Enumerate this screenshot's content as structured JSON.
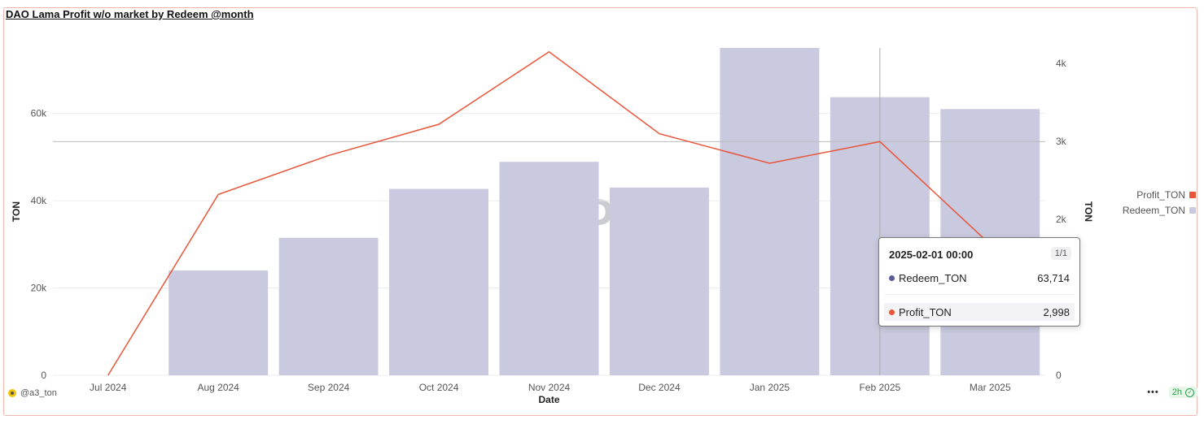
{
  "title": "DAO Lama Profit w/o market by Redeem @month",
  "owner": "@a3_ton",
  "refresh_age": "2h",
  "watermark_text": "Dune",
  "legend": [
    {
      "label": "Profit_TON",
      "color": "#e8563a"
    },
    {
      "label": "Redeem_TON",
      "color": "#c9c9df"
    }
  ],
  "tooltip": {
    "header": "2025-02-01 00:00",
    "page": "1/1",
    "rows": [
      {
        "name": "Redeem_TON",
        "value": "63,714",
        "color": "#5b5b9a"
      },
      {
        "name": "Profit_TON",
        "value": "2,998",
        "color": "#e8563a"
      }
    ]
  },
  "chart_data": {
    "type": "bar",
    "categories": [
      "Jul 2024",
      "Aug 2024",
      "Sep 2024",
      "Oct 2024",
      "Nov 2024",
      "Dec 2024",
      "Jan 2025",
      "Feb 2025",
      "Mar 2025"
    ],
    "xlabel": "Date",
    "ylabel": "TON",
    "y2label": "TON",
    "ylim": [
      0,
      75000
    ],
    "y2lim": [
      0,
      4200
    ],
    "yticks": [
      0,
      20000,
      40000,
      60000
    ],
    "ytick_labels": [
      "0",
      "20k",
      "40k",
      "60k"
    ],
    "y2ticks": [
      0,
      1000,
      2000,
      3000,
      4000
    ],
    "y2tick_labels": [
      "0",
      "1k",
      "2k",
      "3k",
      "4k"
    ],
    "series": [
      {
        "name": "Redeem_TON",
        "kind": "bar",
        "axis": "left",
        "color": "#c9c9df",
        "values": [
          0,
          24000,
          31500,
          42700,
          48900,
          43000,
          75000,
          63714,
          61000
        ]
      },
      {
        "name": "Profit_TON",
        "kind": "line",
        "axis": "right",
        "color": "#e8563a",
        "values": [
          0,
          2320,
          2820,
          3220,
          4150,
          3100,
          2720,
          2998,
          1680
        ]
      }
    ],
    "grid": true,
    "legend_position": "right"
  }
}
